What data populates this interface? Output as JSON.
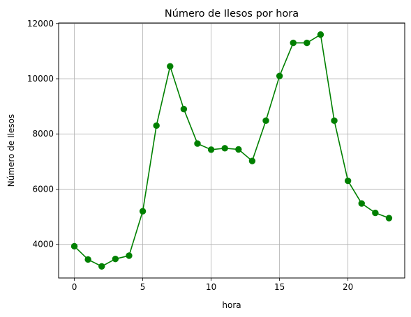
{
  "chart_data": {
    "type": "line",
    "title": "Número de Ilesos por hora",
    "xlabel": "hora",
    "ylabel": "Número de Ilesos",
    "x": [
      0,
      1,
      2,
      3,
      4,
      5,
      6,
      7,
      8,
      9,
      10,
      11,
      12,
      13,
      14,
      15,
      16,
      17,
      18,
      19,
      20,
      21,
      22,
      23
    ],
    "series": [
      {
        "values": [
          3930,
          3450,
          3200,
          3470,
          3590,
          5200,
          8300,
          10450,
          8900,
          7650,
          7430,
          7480,
          7440,
          7020,
          8480,
          10100,
          11300,
          11300,
          11600,
          8480,
          6300,
          5480,
          5140,
          4950
        ],
        "color": "#008000",
        "marker": "circle"
      }
    ],
    "xlim": [
      -1.15,
      24.15
    ],
    "ylim": [
      2780,
      12020
    ],
    "xticks": [
      0,
      5,
      10,
      15,
      20
    ],
    "yticks": [
      4000,
      6000,
      8000,
      10000,
      12000
    ],
    "grid": true,
    "legend": false
  }
}
